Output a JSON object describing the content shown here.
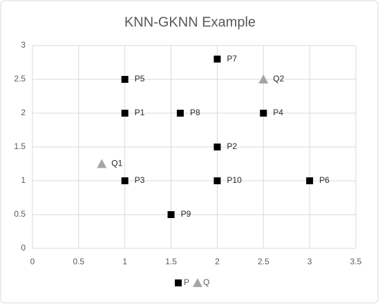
{
  "chart_data": {
    "type": "scatter",
    "title": "KNN-GKNN Example",
    "xlim": [
      0,
      3.5
    ],
    "xticks": [
      0,
      0.5,
      1,
      1.5,
      2,
      2.5,
      3,
      3.5
    ],
    "ylim": [
      0,
      3
    ],
    "yticks": [
      0,
      0.5,
      1,
      1.5,
      2,
      2.5,
      3
    ],
    "grid": true,
    "legend": "bottom",
    "series": [
      {
        "name": "P",
        "color": "#000000",
        "marker": "square",
        "x": [
          1,
          2,
          1,
          2.5,
          1,
          3,
          2,
          1.6,
          1.5,
          2
        ],
        "values": [
          2,
          1.5,
          1,
          2,
          2.5,
          1,
          2.8,
          2,
          0.5,
          1
        ],
        "labels": [
          "P1",
          "P2",
          "P3",
          "P4",
          "P5",
          "P6",
          "P7",
          "P8",
          "P9",
          "P10"
        ]
      },
      {
        "name": "Q",
        "color": "#a5a5a5",
        "marker": "triangle",
        "x": [
          0.75,
          2.5
        ],
        "values": [
          1.25,
          2.5
        ],
        "labels": [
          "Q1",
          "Q2"
        ]
      }
    ]
  }
}
